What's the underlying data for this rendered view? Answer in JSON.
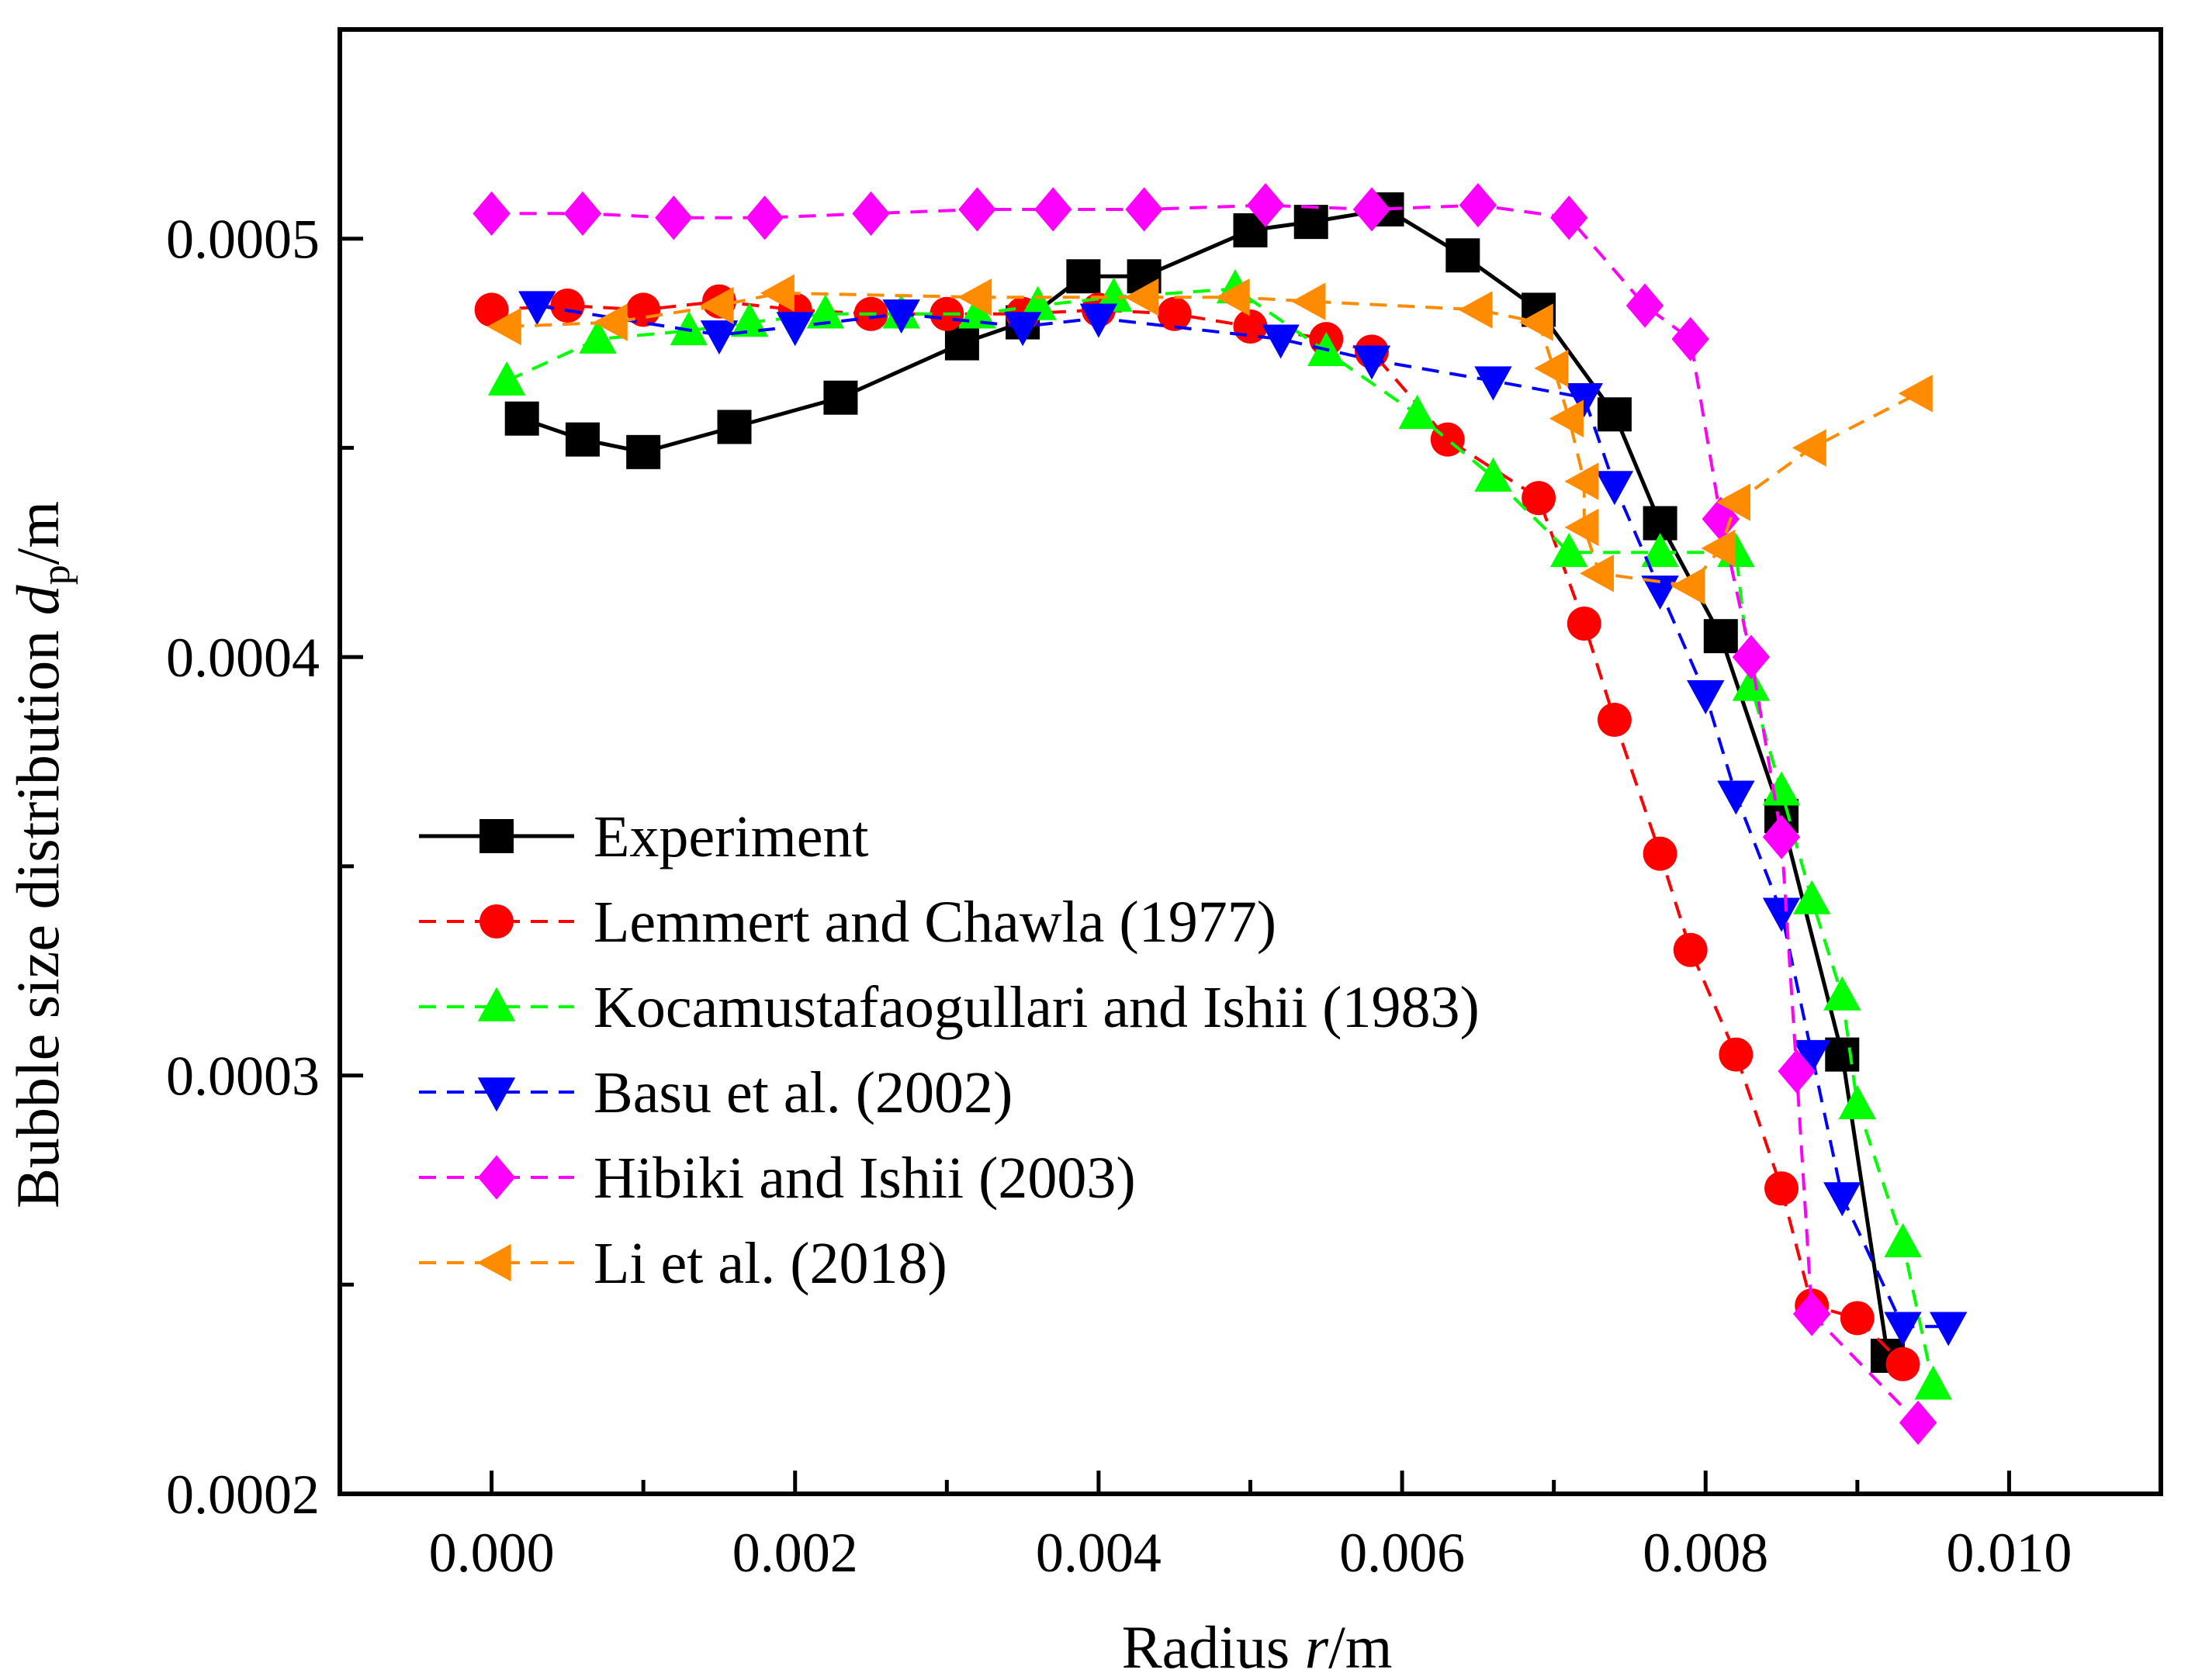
{
  "chart_data": {
    "type": "line",
    "xlabel": {
      "prefix": "Radius ",
      "var": "r",
      "unit": "/m"
    },
    "ylabel": {
      "prefix": "Bubble size distribution ",
      "var": "d",
      "sub": "p",
      "unit": "/m"
    },
    "xlim": [
      -0.001,
      0.011
    ],
    "ylim": [
      0.0002,
      0.00055
    ],
    "xticks": [
      0.0,
      0.002,
      0.004,
      0.006,
      0.008,
      0.01
    ],
    "xtick_labels": [
      "0.000",
      "0.002",
      "0.004",
      "0.006",
      "0.008",
      "0.010"
    ],
    "yticks": [
      0.0002,
      0.0003,
      0.0004,
      0.0005
    ],
    "ytick_labels": [
      "0.0002",
      "0.0003",
      "0.0004",
      "0.0005"
    ],
    "grid": false,
    "legend_position": "lower-left",
    "series": [
      {
        "name": "Experiment",
        "color": "#000000",
        "marker": "square",
        "dashed": false,
        "x": [
          0.0002,
          0.0006,
          0.001,
          0.0016,
          0.0023,
          0.0031,
          0.0035,
          0.0039,
          0.0043,
          0.005,
          0.0054,
          0.0059,
          0.0064,
          0.0069,
          0.0074,
          0.0077,
          0.0081,
          0.0085,
          0.0089,
          0.0092
        ],
        "y": [
          0.000457,
          0.000452,
          0.000449,
          0.000455,
          0.000462,
          0.000475,
          0.00048,
          0.000491,
          0.000491,
          0.000502,
          0.000504,
          0.000507,
          0.000496,
          0.000483,
          0.000458,
          0.000432,
          0.000405,
          0.000362,
          0.000305,
          0.000233
        ]
      },
      {
        "name": "Lemmert and Chawla (1977)",
        "color": "#ff0000",
        "marker": "circle",
        "dashed": true,
        "x": [
          0.0,
          0.0005,
          0.001,
          0.0015,
          0.002,
          0.0025,
          0.003,
          0.0035,
          0.004,
          0.0045,
          0.005,
          0.0055,
          0.0058,
          0.0063,
          0.0069,
          0.0072,
          0.0074,
          0.0077,
          0.0079,
          0.0082,
          0.0085,
          0.0087,
          0.009,
          0.0093
        ],
        "y": [
          0.000483,
          0.000484,
          0.000483,
          0.000485,
          0.000483,
          0.000482,
          0.000482,
          0.000482,
          0.000483,
          0.000482,
          0.000479,
          0.000476,
          0.000473,
          0.000452,
          0.000438,
          0.000408,
          0.000385,
          0.000353,
          0.00033,
          0.000305,
          0.000273,
          0.000245,
          0.000242,
          0.000231
        ]
      },
      {
        "name": "Kocamustafaogullari and Ishii (1983)",
        "color": "#00ff00",
        "marker": "triangle-up",
        "dashed": true,
        "x": [
          0.0001,
          0.0007,
          0.0013,
          0.0017,
          0.0022,
          0.0027,
          0.0032,
          0.0036,
          0.0041,
          0.0049,
          0.0055,
          0.0061,
          0.0066,
          0.0071,
          0.0077,
          0.0082,
          0.0083,
          0.0085,
          0.0087,
          0.0089,
          0.009,
          0.0093,
          0.0095
        ],
        "y": [
          0.000466,
          0.000476,
          0.000478,
          0.00048,
          0.000482,
          0.000482,
          0.000482,
          0.000484,
          0.000486,
          0.000488,
          0.000473,
          0.000458,
          0.000443,
          0.000425,
          0.000425,
          0.000425,
          0.000393,
          0.000368,
          0.000342,
          0.000319,
          0.000293,
          0.00026,
          0.000226
        ]
      },
      {
        "name": "Basu et al. (2002)",
        "color": "#0000ff",
        "marker": "triangle-down",
        "dashed": true,
        "x": [
          0.0003,
          0.0015,
          0.002,
          0.0027,
          0.0035,
          0.004,
          0.0052,
          0.0058,
          0.0066,
          0.0072,
          0.0074,
          0.0077,
          0.008,
          0.0082,
          0.0085,
          0.0087,
          0.0089,
          0.0093,
          0.0096
        ],
        "y": [
          0.000484,
          0.000477,
          0.000479,
          0.000482,
          0.000479,
          0.000481,
          0.000476,
          0.000471,
          0.000466,
          0.000462,
          0.000441,
          0.000416,
          0.000391,
          0.000367,
          0.000339,
          0.000305,
          0.000271,
          0.00024,
          0.00024
        ]
      },
      {
        "name": "Hibiki and Ishii (2003)",
        "color": "#ff00ff",
        "marker": "diamond",
        "dashed": true,
        "x": [
          0.0,
          0.0006,
          0.0012,
          0.0018,
          0.0025,
          0.0032,
          0.0037,
          0.0043,
          0.0051,
          0.0058,
          0.0065,
          0.0071,
          0.0076,
          0.0079,
          0.0081,
          0.0083,
          0.0085,
          0.0086,
          0.0087,
          0.0094
        ],
        "y": [
          0.000506,
          0.000506,
          0.000505,
          0.000505,
          0.000506,
          0.000507,
          0.000507,
          0.000507,
          0.000508,
          0.000507,
          0.000508,
          0.000505,
          0.000484,
          0.000476,
          0.000433,
          0.0004,
          0.000357,
          0.000301,
          0.000243,
          0.000217
        ]
      },
      {
        "name": "Li et al. (2018)",
        "color": "#ff8c00",
        "marker": "triangle-left",
        "dashed": true,
        "x": [
          0.0001,
          0.0008,
          0.0015,
          0.0019,
          0.0032,
          0.0043,
          0.0049,
          0.0054,
          0.0065,
          0.0069,
          0.007,
          0.0071,
          0.0072,
          0.0072,
          0.0073,
          0.0079,
          0.0081,
          0.0082,
          0.0087,
          0.0094
        ],
        "y": [
          0.000479,
          0.00048,
          0.000484,
          0.000487,
          0.000486,
          0.000486,
          0.000486,
          0.000485,
          0.000483,
          0.00048,
          0.000469,
          0.000457,
          0.000442,
          0.000431,
          0.00042,
          0.000417,
          0.000426,
          0.000437,
          0.00045,
          0.000463
        ]
      }
    ]
  }
}
